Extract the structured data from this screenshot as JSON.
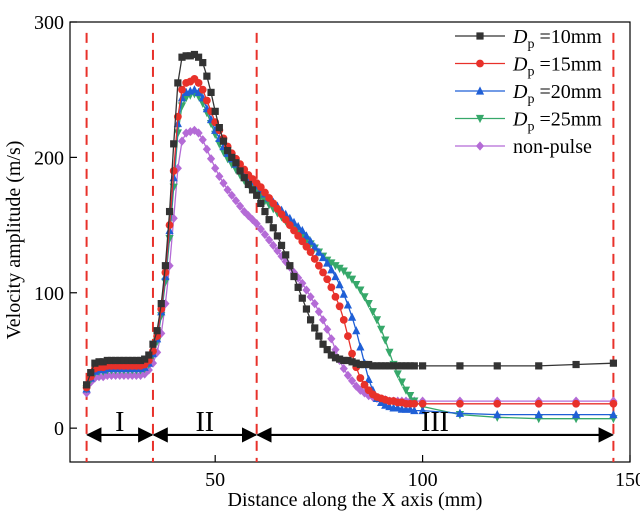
{
  "chart_data": {
    "type": "line",
    "xlabel": "Distance along the X axis (mm)",
    "ylabel": "Velocity amplitude (m/s)",
    "xlim": [
      15,
      150
    ],
    "ylim": [
      -25,
      300
    ],
    "xticks": [
      {
        "value": 50,
        "label": "50"
      },
      {
        "value": 100,
        "label": "100"
      },
      {
        "value": 150,
        "label": "150"
      }
    ],
    "yticks": [
      {
        "value": 0,
        "label": "0"
      },
      {
        "value": 100,
        "label": "100"
      },
      {
        "value": 200,
        "label": "200"
      },
      {
        "value": 300,
        "label": "300"
      }
    ],
    "grid": false,
    "legend_position": "top-right",
    "vlines": [
      19,
      35,
      60,
      146
    ],
    "regions": [
      {
        "label": "I",
        "x_start": 19,
        "x_end": 35
      },
      {
        "label": "II",
        "x_start": 35,
        "x_end": 60
      },
      {
        "label": "III",
        "x_start": 60,
        "x_end": 146
      }
    ],
    "arrow_y": -5,
    "series": [
      {
        "name": "D_p = 10mm",
        "legend_prefix": "D",
        "legend_sub": "p",
        "legend_suffix": " =10mm",
        "color": "#333333",
        "marker": "square",
        "x": [
          19,
          20,
          21,
          22,
          23,
          24,
          25,
          26,
          27,
          28,
          29,
          30,
          31,
          32,
          33,
          34,
          35,
          36,
          37,
          38,
          39,
          40,
          41,
          42,
          43,
          44,
          45,
          46,
          47,
          48,
          49,
          50,
          51,
          52,
          53,
          54,
          55,
          56,
          57,
          58,
          59,
          60,
          61,
          62,
          63,
          64,
          65,
          66,
          67,
          68,
          69,
          70,
          71,
          72,
          73,
          74,
          75,
          76,
          77,
          78,
          79,
          80,
          81,
          82,
          83,
          84,
          85,
          86,
          87,
          88,
          89,
          90,
          91,
          92,
          93,
          94,
          95,
          96,
          97,
          98,
          100,
          109,
          118,
          128,
          137,
          146
        ],
        "y": [
          32,
          41,
          48,
          49,
          49,
          50,
          50,
          50,
          50,
          50,
          50,
          50,
          50,
          50,
          51,
          54,
          62,
          72,
          92,
          120,
          160,
          210,
          255,
          274,
          275,
          275,
          276,
          274,
          270,
          260,
          248,
          234,
          222,
          212,
          205,
          200,
          196,
          190,
          185,
          180,
          176,
          172,
          166,
          160,
          154,
          148,
          142,
          135,
          128,
          120,
          112,
          104,
          96,
          88,
          80,
          74,
          68,
          62,
          58,
          54,
          52,
          51,
          50,
          50,
          49,
          48,
          47,
          47,
          47,
          46,
          46,
          46,
          46,
          46,
          46,
          46,
          46,
          46,
          46,
          46,
          46,
          46,
          46,
          46,
          47,
          48
        ]
      },
      {
        "name": "D_p = 15mm",
        "legend_prefix": "D",
        "legend_sub": "p",
        "legend_suffix": " =15mm",
        "color": "#e8312a",
        "marker": "circle",
        "x": [
          19,
          20,
          21,
          22,
          23,
          24,
          25,
          26,
          27,
          28,
          29,
          30,
          31,
          32,
          33,
          34,
          35,
          36,
          37,
          38,
          39,
          40,
          41,
          42,
          43,
          44,
          45,
          46,
          47,
          48,
          49,
          50,
          51,
          52,
          53,
          54,
          55,
          56,
          57,
          58,
          59,
          60,
          61,
          62,
          63,
          64,
          65,
          66,
          67,
          68,
          69,
          70,
          71,
          72,
          73,
          74,
          75,
          76,
          77,
          78,
          79,
          80,
          81,
          82,
          83,
          84,
          85,
          86,
          87,
          88,
          89,
          90,
          91,
          92,
          93,
          94,
          95,
          96,
          97,
          98,
          100,
          109,
          118,
          128,
          137,
          146
        ],
        "y": [
          30,
          38,
          44,
          45,
          45,
          46,
          46,
          46,
          46,
          46,
          46,
          46,
          46,
          46,
          47,
          50,
          57,
          68,
          88,
          115,
          150,
          190,
          230,
          250,
          255,
          256,
          258,
          255,
          250,
          242,
          234,
          226,
          220,
          214,
          208,
          203,
          199,
          195,
          191,
          187,
          184,
          181,
          178,
          174,
          170,
          166,
          162,
          158,
          154,
          150,
          146,
          142,
          138,
          134,
          130,
          125,
          120,
          115,
          110,
          104,
          97,
          90,
          80,
          68,
          55,
          45,
          37,
          32,
          28,
          25,
          23,
          22,
          21,
          20,
          20,
          19,
          19,
          18,
          18,
          18,
          18,
          18,
          18,
          18,
          18,
          18
        ]
      },
      {
        "name": "D_p = 20mm",
        "legend_prefix": "D",
        "legend_sub": "p",
        "legend_suffix": " =20mm",
        "color": "#1f5fd6",
        "marker": "triangle-up",
        "x": [
          19,
          20,
          21,
          22,
          23,
          24,
          25,
          26,
          27,
          28,
          29,
          30,
          31,
          32,
          33,
          34,
          35,
          36,
          37,
          38,
          39,
          40,
          41,
          42,
          43,
          44,
          45,
          46,
          47,
          48,
          49,
          50,
          51,
          52,
          53,
          54,
          55,
          56,
          57,
          58,
          59,
          60,
          61,
          62,
          63,
          64,
          65,
          66,
          67,
          68,
          69,
          70,
          71,
          72,
          73,
          74,
          75,
          76,
          77,
          78,
          79,
          80,
          81,
          82,
          83,
          84,
          85,
          86,
          87,
          88,
          89,
          90,
          91,
          92,
          93,
          94,
          95,
          96,
          97,
          98,
          100,
          109,
          118,
          128,
          137,
          146
        ],
        "y": [
          29,
          37,
          42,
          43,
          43,
          44,
          44,
          44,
          44,
          44,
          44,
          44,
          44,
          44,
          45,
          48,
          55,
          66,
          86,
          112,
          146,
          185,
          225,
          244,
          248,
          249,
          250,
          248,
          244,
          236,
          228,
          220,
          214,
          208,
          203,
          199,
          195,
          191,
          188,
          185,
          182,
          179,
          176,
          173,
          170,
          167,
          164,
          161,
          158,
          155,
          152,
          149,
          146,
          142,
          138,
          134,
          130,
          126,
          122,
          117,
          112,
          106,
          99,
          91,
          82,
          72,
          60,
          48,
          36,
          28,
          22,
          19,
          17,
          16,
          15,
          15,
          14,
          14,
          14,
          13,
          13,
          11,
          10,
          10,
          10,
          10
        ]
      },
      {
        "name": "D_p = 25mm",
        "legend_prefix": "D",
        "legend_sub": "p",
        "legend_suffix": " =25mm",
        "color": "#36a86a",
        "marker": "triangle-down",
        "x": [
          19,
          20,
          21,
          22,
          23,
          24,
          25,
          26,
          27,
          28,
          29,
          30,
          31,
          32,
          33,
          34,
          35,
          36,
          37,
          38,
          39,
          40,
          41,
          42,
          43,
          44,
          45,
          46,
          47,
          48,
          49,
          50,
          51,
          52,
          53,
          54,
          55,
          56,
          57,
          58,
          59,
          60,
          61,
          62,
          63,
          64,
          65,
          66,
          67,
          68,
          69,
          70,
          71,
          72,
          73,
          74,
          75,
          76,
          77,
          78,
          79,
          80,
          81,
          82,
          83,
          84,
          85,
          86,
          87,
          88,
          89,
          90,
          91,
          92,
          93,
          94,
          95,
          96,
          97,
          98,
          100,
          109,
          118,
          128,
          137,
          146
        ],
        "y": [
          29,
          36,
          41,
          42,
          42,
          43,
          43,
          43,
          43,
          43,
          43,
          43,
          43,
          43,
          44,
          47,
          54,
          64,
          83,
          108,
          140,
          178,
          218,
          238,
          244,
          246,
          247,
          245,
          240,
          233,
          225,
          217,
          210,
          204,
          199,
          195,
          191,
          187,
          183,
          180,
          177,
          174,
          171,
          168,
          165,
          162,
          159,
          156,
          153,
          150,
          147,
          145,
          142,
          139,
          136,
          133,
          130,
          127,
          124,
          122,
          120,
          118,
          116,
          113,
          110,
          106,
          102,
          97,
          92,
          86,
          80,
          73,
          65,
          56,
          47,
          40,
          34,
          28,
          24,
          20,
          16,
          10,
          8,
          7,
          7,
          7
        ]
      },
      {
        "name": "non-pulse",
        "legend_prefix": "non-pulse",
        "legend_sub": "",
        "legend_suffix": "",
        "color": "#b46bd6",
        "marker": "diamond",
        "x": [
          19,
          20,
          21,
          22,
          23,
          24,
          25,
          26,
          27,
          28,
          29,
          30,
          31,
          32,
          33,
          34,
          35,
          36,
          37,
          38,
          39,
          40,
          41,
          42,
          43,
          44,
          45,
          46,
          47,
          48,
          49,
          50,
          51,
          52,
          53,
          54,
          55,
          56,
          57,
          58,
          59,
          60,
          61,
          62,
          63,
          64,
          65,
          66,
          67,
          68,
          69,
          70,
          71,
          72,
          73,
          74,
          75,
          76,
          77,
          78,
          79,
          80,
          81,
          82,
          83,
          84,
          85,
          86,
          87,
          88,
          89,
          90,
          91,
          92,
          93,
          94,
          95,
          96,
          97,
          98,
          100,
          109,
          118,
          128,
          137,
          146
        ],
        "y": [
          26,
          34,
          37,
          38,
          38,
          39,
          39,
          39,
          39,
          39,
          39,
          39,
          39,
          39,
          40,
          43,
          48,
          56,
          70,
          92,
          120,
          155,
          192,
          212,
          218,
          219,
          220,
          218,
          213,
          206,
          199,
          192,
          186,
          181,
          176,
          172,
          168,
          164,
          160,
          157,
          154,
          151,
          147,
          143,
          139,
          135,
          131,
          127,
          123,
          119,
          115,
          111,
          107,
          102,
          97,
          92,
          86,
          80,
          73,
          66,
          58,
          50,
          44,
          39,
          35,
          31,
          28,
          26,
          24,
          23,
          22,
          21,
          21,
          20,
          20,
          20,
          20,
          20,
          20,
          20,
          20,
          20,
          20,
          20,
          20,
          20
        ]
      }
    ]
  }
}
